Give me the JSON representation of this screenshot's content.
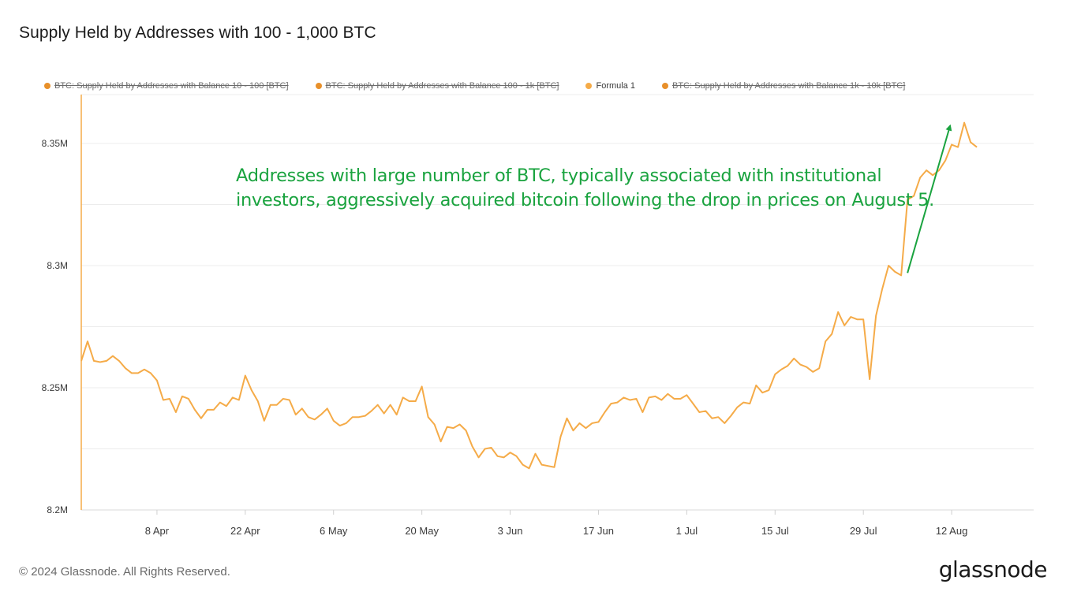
{
  "title": "Supply Held by Addresses with 100 - 1,000 BTC",
  "legend": [
    {
      "label": "BTC: Supply Held by Addresses with Balance 10 - 100 [BTC]",
      "color": "#e8902a",
      "disabled": true
    },
    {
      "label": "BTC: Supply Held by Addresses with Balance 100 - 1k [BTC]",
      "color": "#e8902a",
      "disabled": true
    },
    {
      "label": "Formula 1",
      "color": "#f5ab48",
      "disabled": false
    },
    {
      "label": "BTC: Supply Held by Addresses with Balance 1k - 10k [BTC]",
      "color": "#e8902a",
      "disabled": true
    }
  ],
  "annotation": {
    "text": "Addresses with large number of BTC, typically associated with institutional investors, aggressively acquired bitcoin following the drop in prices on August 5.",
    "color": "#1aa33f"
  },
  "footer": "© 2024 Glassnode. All Rights Reserved.",
  "logo": "glassnode",
  "chart_data": {
    "type": "line",
    "x_tick_labels": [
      "8 Apr",
      "22 Apr",
      "6 May",
      "20 May",
      "3 Jun",
      "17 Jun",
      "1 Jul",
      "15 Jul",
      "29 Jul",
      "12 Aug"
    ],
    "y_tick_labels": [
      "8.2M",
      "8.25M",
      "8.3M",
      "8.35M"
    ],
    "ylim": [
      8200000,
      8370000
    ],
    "xlim": [
      "2024-03-27",
      "2024-08-25"
    ],
    "grid": true,
    "legend_position": "top-left",
    "series": [
      {
        "name": "Formula 1",
        "color": "#f5ab48",
        "start_date": "2024-03-27",
        "step_days": 1,
        "values": [
          8261000,
          8269000,
          8261000,
          8260500,
          8261000,
          8263000,
          8261000,
          8258000,
          8256000,
          8256000,
          8257500,
          8256000,
          8253000,
          8245000,
          8245500,
          8240000,
          8246500,
          8245500,
          8241000,
          8237500,
          8241000,
          8241000,
          8244000,
          8242500,
          8246000,
          8245000,
          8255000,
          8249000,
          8244500,
          8236500,
          8243000,
          8243000,
          8245500,
          8245000,
          8239000,
          8241500,
          8238000,
          8237000,
          8239000,
          8241500,
          8236500,
          8234500,
          8235500,
          8238000,
          8238000,
          8238500,
          8240500,
          8243000,
          8239500,
          8243000,
          8239000,
          8246000,
          8244500,
          8244500,
          8250500,
          8238000,
          8235000,
          8228000,
          8234000,
          8233500,
          8235000,
          8232500,
          8226000,
          8221500,
          8225000,
          8225500,
          8222000,
          8221500,
          8223500,
          8222000,
          8218500,
          8217000,
          8223000,
          8218500,
          8218000,
          8217500,
          8230000,
          8237500,
          8232500,
          8235500,
          8233500,
          8235500,
          8236000,
          8240000,
          8243500,
          8244000,
          8246000,
          8245000,
          8245500,
          8240000,
          8246000,
          8246500,
          8245000,
          8247500,
          8245500,
          8245500,
          8247000,
          8243500,
          8240000,
          8240500,
          8237500,
          8238000,
          8235500,
          8238500,
          8242000,
          8244000,
          8243500,
          8251000,
          8248000,
          8249000,
          8255500,
          8257500,
          8259000,
          8262000,
          8259500,
          8258500,
          8256500,
          8258000,
          8269000,
          8272000,
          8281000,
          8275500,
          8279000,
          8278000,
          8278000,
          8253500,
          8279500,
          8290500,
          8300000,
          8297500,
          8296000,
          8327000,
          8328500,
          8336000,
          8339000,
          8337000,
          8339000,
          8343000,
          8349500,
          8348500,
          8358500,
          8350500,
          8348500
        ]
      }
    ],
    "annotations": [
      {
        "type": "arrow",
        "from_date": "2024-08-05",
        "from_value": 8297000,
        "to_date": "2024-08-12",
        "to_value": 8358500,
        "color": "#1aa33f"
      }
    ]
  }
}
